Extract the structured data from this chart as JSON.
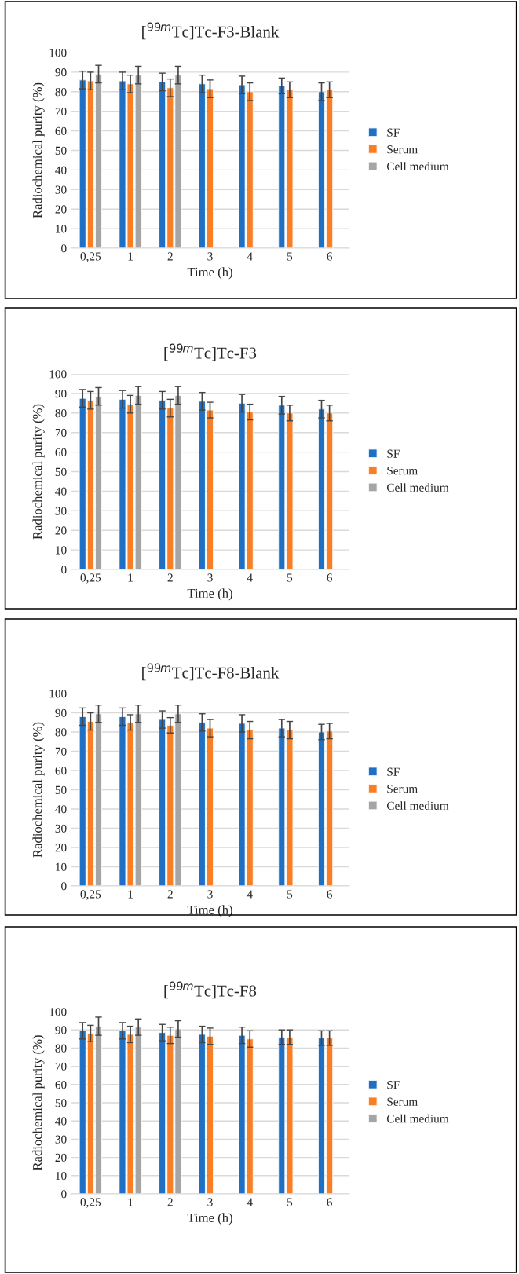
{
  "chart_data": [
    {
      "type": "bar",
      "title": "[$^{99m}$Tc]Tc-F3-Blank",
      "xlabel": "Time (h)",
      "ylabel": "Radiochemical purity (%)",
      "categories": [
        "0,25",
        "1",
        "2",
        "3",
        "4",
        "5",
        "6"
      ],
      "ylim": [
        0,
        100
      ],
      "yticks": [
        0,
        10,
        20,
        30,
        40,
        50,
        60,
        70,
        80,
        90,
        100
      ],
      "grid": "y",
      "legend": "right",
      "series": [
        {
          "name": "SF",
          "color": "#1f6fc5",
          "values": [
            86,
            85.5,
            85,
            84,
            83.5,
            83,
            80
          ],
          "errors": [
            4.5,
            4.5,
            4.5,
            4.5,
            4.5,
            4,
            4.5
          ]
        },
        {
          "name": "Serum",
          "color": "#f97f26",
          "values": [
            85.5,
            84,
            82,
            81.5,
            80,
            81,
            81
          ],
          "errors": [
            4.5,
            4.5,
            4.5,
            4.5,
            4.5,
            4,
            4
          ]
        },
        {
          "name": "Cell medium",
          "color": "#a5a5a5",
          "values": [
            89,
            88.5,
            88.5,
            null,
            null,
            null,
            null
          ],
          "errors": [
            4.5,
            4.5,
            4.5,
            null,
            null,
            null,
            null
          ]
        }
      ]
    },
    {
      "type": "bar",
      "title": "[$^{99m}$Tc]Tc-F3",
      "xlabel": "Time (h)",
      "ylabel": "Radiochemical purity (%)",
      "categories": [
        "0,25",
        "1",
        "2",
        "3",
        "4",
        "5",
        "6"
      ],
      "ylim": [
        0,
        100
      ],
      "yticks": [
        0,
        10,
        20,
        30,
        40,
        50,
        60,
        70,
        80,
        90,
        100
      ],
      "grid": "y",
      "legend": "right",
      "series": [
        {
          "name": "SF",
          "color": "#1f6fc5",
          "values": [
            87.5,
            87,
            86.5,
            86,
            85,
            84,
            82
          ],
          "errors": [
            4.5,
            4.5,
            4.5,
            4.5,
            4.5,
            4.5,
            4.5
          ]
        },
        {
          "name": "Serum",
          "color": "#f97f26",
          "values": [
            86.5,
            84.5,
            82.5,
            81.5,
            80.5,
            80,
            80
          ],
          "errors": [
            4.5,
            4.5,
            4.5,
            4,
            4,
            4,
            4
          ]
        },
        {
          "name": "Cell medium",
          "color": "#a5a5a5",
          "values": [
            88.5,
            89,
            89,
            null,
            null,
            null,
            null
          ],
          "errors": [
            4.5,
            4.5,
            4.5,
            null,
            null,
            null,
            null
          ]
        }
      ]
    },
    {
      "type": "bar",
      "title": "[$^{99m}$Tc]Tc-F8-Blank",
      "xlabel": "Time (h)",
      "ylabel": "Radiochemical purity (%)",
      "categories": [
        "0,25",
        "1",
        "2",
        "3",
        "4",
        "5",
        "6"
      ],
      "ylim": [
        0,
        100
      ],
      "yticks": [
        0,
        10,
        20,
        30,
        40,
        50,
        60,
        70,
        80,
        90,
        100
      ],
      "grid": "y",
      "legend": "right",
      "series": [
        {
          "name": "SF",
          "color": "#1f6fc5",
          "values": [
            88,
            88,
            86.5,
            85,
            84.5,
            82,
            80
          ],
          "errors": [
            4.5,
            4.5,
            4.5,
            4.5,
            4.5,
            4.5,
            4
          ]
        },
        {
          "name": "Serum",
          "color": "#f97f26",
          "values": [
            85.5,
            85,
            83.5,
            82,
            81,
            81,
            80.5
          ],
          "errors": [
            4.5,
            4,
            4,
            4.5,
            4.5,
            4.5,
            4
          ]
        },
        {
          "name": "Cell medium",
          "color": "#a5a5a5",
          "values": [
            89.5,
            89.5,
            89.5,
            null,
            null,
            null,
            null
          ],
          "errors": [
            4.5,
            4.5,
            4.5,
            null,
            null,
            null,
            null
          ]
        }
      ]
    },
    {
      "type": "bar",
      "title": "[$^{99m}$Tc]Tc-F8",
      "xlabel": "Time (h)",
      "ylabel": "Radiochemical purity (%)",
      "categories": [
        "0,25",
        "1",
        "2",
        "3",
        "4",
        "5",
        "6"
      ],
      "ylim": [
        0,
        100
      ],
      "yticks": [
        0,
        10,
        20,
        30,
        40,
        50,
        60,
        70,
        80,
        90,
        100
      ],
      "grid": "y",
      "legend": "right",
      "series": [
        {
          "name": "SF",
          "color": "#1f6fc5",
          "values": [
            89.5,
            89.5,
            88.5,
            87.5,
            87,
            86,
            85.5
          ],
          "errors": [
            4.5,
            4.5,
            4.5,
            4.5,
            4.5,
            4,
            4
          ]
        },
        {
          "name": "Serum",
          "color": "#f97f26",
          "values": [
            88,
            87.5,
            87,
            86.5,
            85,
            86,
            85.5
          ],
          "errors": [
            4.5,
            4.5,
            4.5,
            4.5,
            4.5,
            4,
            4
          ]
        },
        {
          "name": "Cell medium",
          "color": "#a5a5a5",
          "values": [
            92,
            91.5,
            90.5,
            null,
            null,
            null,
            null
          ],
          "errors": [
            5,
            4.5,
            4.5,
            null,
            null,
            null,
            null
          ]
        }
      ]
    }
  ]
}
